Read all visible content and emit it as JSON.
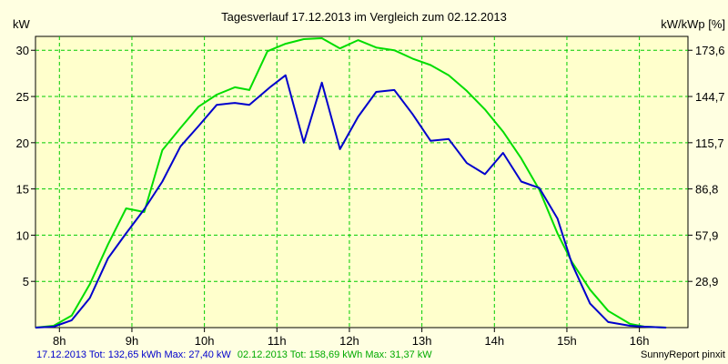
{
  "chart_data": {
    "type": "line",
    "title": "Tagesverlauf 17.12.2013 im Vergleich zum 02.12.2013",
    "ylabel_left": "kW",
    "ylabel_right": "kW/kWp [%]",
    "x_ticks": [
      "8h",
      "9h",
      "10h",
      "11h",
      "12h",
      "13h",
      "14h",
      "15h",
      "16h"
    ],
    "x_tick_values": [
      8,
      9,
      10,
      11,
      12,
      13,
      14,
      15,
      16
    ],
    "y_ticks_left": [
      "5",
      "10",
      "15",
      "20",
      "25",
      "30"
    ],
    "y_tick_values_left": [
      5,
      10,
      15,
      20,
      25,
      30
    ],
    "y_ticks_right": [
      "28,9",
      "57,9",
      "86,8",
      "115,7",
      "144,7",
      "173,6"
    ],
    "xlim": [
      7.67,
      16.67
    ],
    "ylim": [
      0,
      31.5
    ],
    "grid": true,
    "series": [
      {
        "color": "#0000cc",
        "x": [
          7.67,
          7.92,
          8.17,
          8.42,
          8.67,
          8.92,
          9.17,
          9.42,
          9.67,
          9.92,
          10.17,
          10.42,
          10.62,
          10.92,
          11.12,
          11.37,
          11.62,
          11.87,
          12.12,
          12.37,
          12.62,
          12.87,
          13.12,
          13.37,
          13.62,
          13.87,
          14.12,
          14.37,
          14.62,
          14.87,
          15.07,
          15.32,
          15.57,
          15.87,
          16.07,
          16.37
        ],
        "y": [
          0.0,
          0.1,
          0.8,
          3.2,
          7.5,
          10.2,
          12.8,
          15.8,
          19.6,
          21.8,
          24.1,
          24.3,
          24.1,
          26.1,
          27.3,
          20.0,
          26.5,
          19.3,
          22.8,
          25.5,
          25.7,
          23.1,
          20.2,
          20.4,
          17.8,
          16.6,
          18.9,
          15.8,
          15.1,
          11.8,
          6.9,
          2.6,
          0.6,
          0.2,
          0.1,
          0.0
        ]
      },
      {
        "color": "#00dd00",
        "x": [
          7.67,
          7.92,
          8.17,
          8.42,
          8.67,
          8.92,
          9.17,
          9.42,
          9.67,
          9.92,
          10.17,
          10.42,
          10.62,
          10.87,
          11.12,
          11.37,
          11.62,
          11.87,
          12.12,
          12.37,
          12.62,
          12.87,
          13.12,
          13.37,
          13.62,
          13.87,
          14.12,
          14.37,
          14.62,
          14.87,
          15.07,
          15.32,
          15.57,
          15.87,
          16.07,
          16.37
        ],
        "y": [
          0.0,
          0.2,
          1.3,
          4.7,
          9.0,
          12.9,
          12.5,
          19.2,
          21.6,
          23.9,
          25.2,
          26.0,
          25.7,
          29.9,
          30.7,
          31.2,
          31.3,
          30.2,
          31.1,
          30.3,
          30.0,
          29.1,
          28.4,
          27.3,
          25.6,
          23.6,
          21.2,
          18.3,
          14.9,
          10.2,
          7.1,
          4.1,
          1.8,
          0.4,
          0.1,
          0.0
        ]
      }
    ]
  },
  "footer": {
    "series1_text": "17.12.2013 Tot: 132,65 kWh Max: 27,40 kW",
    "series2_text": "02.12.2013 Tot: 158,69 kWh Max: 31,37 kW",
    "credit": "SunnyReport pinxit"
  },
  "colors": {
    "background": "#ffffe1",
    "plot_background": "#ffffcc",
    "grid": "#00cc00",
    "series1_text": "#0000cc",
    "series2_text": "#00aa00"
  }
}
